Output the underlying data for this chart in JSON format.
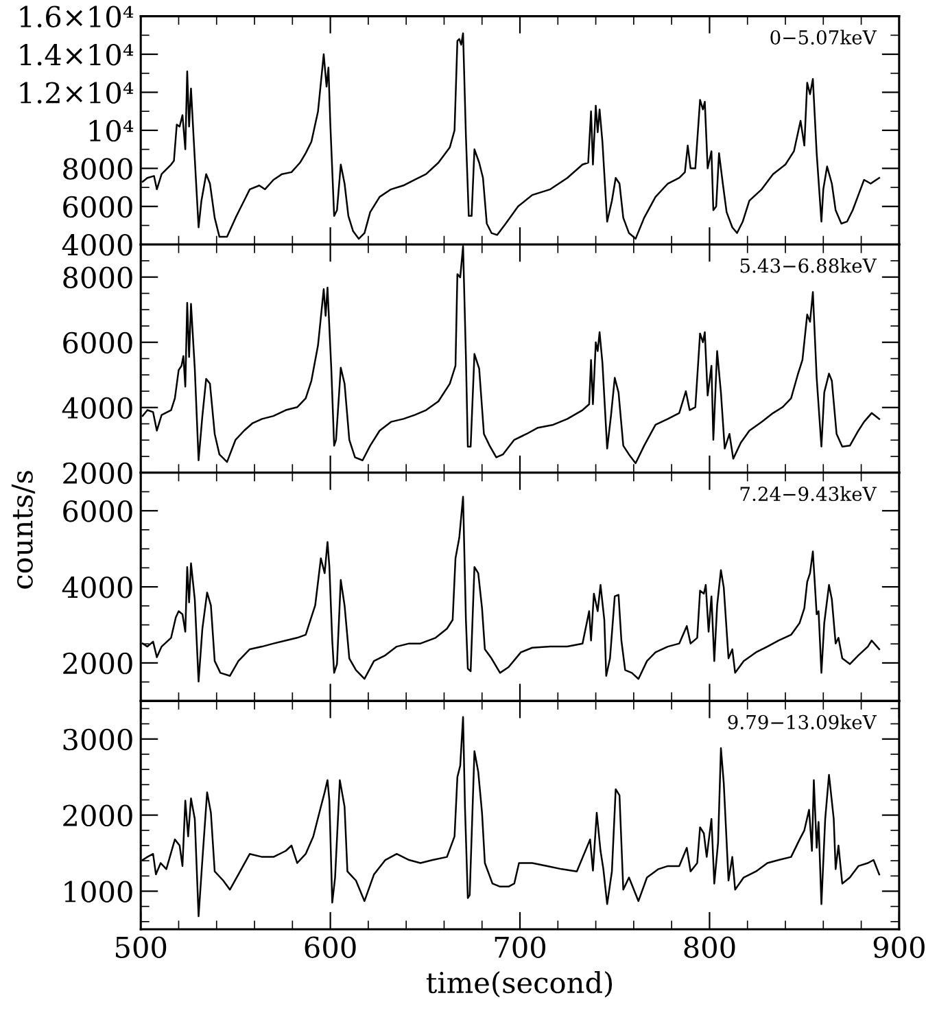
{
  "chart_data": [
    {
      "type": "line",
      "annotations": [
        "0−5.07keV"
      ],
      "color": "#000000",
      "tick_labels": "y",
      "xlim": [
        500,
        900
      ],
      "xticks": [
        500,
        {
          "value": 520,
          "label": null
        },
        {
          "value": 540,
          "label": null
        },
        {
          "value": 560,
          "label": null
        },
        {
          "value": 580,
          "label": null
        },
        600,
        {
          "value": 620,
          "label": null
        },
        {
          "value": 640,
          "label": null
        },
        {
          "value": 660,
          "label": null
        },
        {
          "value": 680,
          "label": null
        },
        700,
        {
          "value": 720,
          "label": null
        },
        {
          "value": 740,
          "label": null
        },
        {
          "value": 760,
          "label": null
        },
        {
          "value": 780,
          "label": null
        },
        800,
        {
          "value": 820,
          "label": null
        },
        {
          "value": 840,
          "label": null
        },
        {
          "value": 860,
          "label": null
        },
        {
          "value": 880,
          "label": null
        },
        900
      ],
      "ylim": [
        4000,
        16000
      ],
      "yticks": [
        4000,
        {
          "value": 5000,
          "label": null
        },
        6000,
        {
          "value": 7000,
          "label": null
        },
        8000,
        {
          "value": 9000,
          "label": null
        },
        {
          "value": 10000,
          "label": "10⁴"
        },
        {
          "value": 11000,
          "label": null
        },
        {
          "value": 12000,
          "label": "1.2×10⁴"
        },
        {
          "value": 13000,
          "label": null
        },
        {
          "value": 14000,
          "label": "1.4×10⁴"
        },
        {
          "value": 15000,
          "label": null
        },
        {
          "value": 16000,
          "label": "1.6×10⁴"
        }
      ],
      "x": [
        501,
        503.5,
        507,
        508.5,
        511,
        516,
        517.5,
        519,
        520.5,
        522,
        523.5,
        524.5,
        525.5,
        526.5,
        528,
        530.5,
        532,
        534.5,
        536.5,
        539,
        541.5,
        545.5,
        550,
        552,
        554.5,
        557.5,
        562.5,
        565.5,
        570,
        574.5,
        579.5,
        584,
        587,
        590,
        593.5,
        596.5,
        598,
        599,
        600,
        602,
        603.5,
        605.5,
        607.5,
        609.5,
        612,
        615,
        618,
        621,
        626,
        632,
        638.5,
        644.5,
        650.5,
        657,
        663,
        665.5,
        667,
        668,
        669,
        670,
        671.5,
        673,
        674.5,
        676,
        678.5,
        680.5,
        682.5,
        685,
        688,
        692.5,
        699,
        706.5,
        716,
        725,
        733,
        736,
        737.5,
        738.5,
        740,
        741,
        742,
        743.5,
        746,
        748.5,
        750.5,
        752.5,
        754.5,
        757.5,
        761,
        765.5,
        771.5,
        778,
        784,
        787,
        788.5,
        790,
        792.5,
        795,
        796.5,
        797.5,
        799,
        801,
        802,
        803.5,
        805,
        807,
        809,
        812,
        814.5,
        817.5,
        821,
        827.5,
        833.5,
        840,
        844.5,
        848,
        850,
        851.5,
        853,
        854.5,
        856.5,
        859,
        860,
        862,
        864.5,
        866.5,
        869.5,
        872.5,
        875.5,
        878.5,
        881.5,
        885,
        889.5
      ],
      "values": [
        7300,
        7500,
        7600,
        6900,
        7700,
        8200,
        8400,
        10300,
        10200,
        10800,
        9000,
        13100,
        10200,
        12200,
        9400,
        4900,
        6300,
        7700,
        7200,
        5400,
        4400,
        4400,
        5400,
        5800,
        6300,
        6900,
        7100,
        6900,
        7400,
        7700,
        7800,
        8300,
        8800,
        9400,
        11000,
        14000,
        12300,
        13300,
        10300,
        5500,
        5800,
        8200,
        7200,
        5500,
        4700,
        4300,
        4600,
        5700,
        6500,
        6900,
        7100,
        7400,
        7700,
        8300,
        9100,
        10000,
        14700,
        14800,
        14500,
        15100,
        9700,
        5500,
        5500,
        9000,
        8300,
        7500,
        5100,
        4600,
        4500,
        5100,
        6000,
        6600,
        6900,
        7500,
        8200,
        8300,
        11000,
        8200,
        11300,
        9900,
        11100,
        9400,
        5200,
        6300,
        7500,
        7200,
        5400,
        4600,
        4300,
        5400,
        6500,
        7200,
        7500,
        7800,
        9200,
        8000,
        8000,
        11600,
        11100,
        11500,
        8000,
        8900,
        5800,
        6000,
        8800,
        7200,
        5700,
        4900,
        4600,
        5200,
        6300,
        6900,
        7700,
        8200,
        8900,
        10500,
        9200,
        12500,
        11900,
        12700,
        8800,
        5200,
        6900,
        8100,
        7200,
        5800,
        5100,
        5200,
        5800,
        6600,
        7400,
        7200,
        7500
      ]
    },
    {
      "type": "line",
      "annotations": [
        "5.43−6.88keV"
      ],
      "color": "#000000",
      "tick_labels": "y",
      "xlim": [
        500,
        900
      ],
      "xticks": [
        500,
        {
          "value": 520,
          "label": null
        },
        {
          "value": 540,
          "label": null
        },
        {
          "value": 560,
          "label": null
        },
        {
          "value": 580,
          "label": null
        },
        600,
        {
          "value": 620,
          "label": null
        },
        {
          "value": 640,
          "label": null
        },
        {
          "value": 660,
          "label": null
        },
        {
          "value": 680,
          "label": null
        },
        700,
        {
          "value": 720,
          "label": null
        },
        {
          "value": 740,
          "label": null
        },
        {
          "value": 760,
          "label": null
        },
        {
          "value": 780,
          "label": null
        },
        800,
        {
          "value": 820,
          "label": null
        },
        {
          "value": 840,
          "label": null
        },
        {
          "value": 860,
          "label": null
        },
        {
          "value": 880,
          "label": null
        },
        900
      ],
      "ylim": [
        2000,
        9000
      ],
      "yticks": [
        2000,
        {
          "value": 2500,
          "label": null
        },
        {
          "value": 3000,
          "label": null
        },
        {
          "value": 3500,
          "label": null
        },
        4000,
        {
          "value": 4500,
          "label": null
        },
        {
          "value": 5000,
          "label": null
        },
        {
          "value": 5500,
          "label": null
        },
        6000,
        {
          "value": 6500,
          "label": null
        },
        {
          "value": 7000,
          "label": null
        },
        {
          "value": 7500,
          "label": null
        },
        8000,
        {
          "value": 8500,
          "label": null
        }
      ],
      "x": [
        501,
        503.5,
        506.5,
        508.5,
        511,
        516,
        518,
        520,
        521.5,
        522.5,
        523.5,
        524.5,
        525.5,
        526.5,
        528.5,
        530.5,
        532.5,
        534.5,
        536.5,
        539,
        541.5,
        545.5,
        550,
        554.5,
        559,
        564,
        570,
        576.5,
        582.5,
        587,
        590,
        593.5,
        596.5,
        597.5,
        598.5,
        600.5,
        602,
        603,
        605.5,
        607.5,
        610,
        613,
        617,
        621,
        626,
        632,
        638.5,
        644.5,
        650.5,
        657,
        663,
        666,
        667,
        668.5,
        670,
        671.5,
        672.5,
        674,
        676,
        678.5,
        681,
        684,
        687.5,
        691,
        697,
        703.5,
        709.5,
        717.5,
        725,
        733,
        736.5,
        737.5,
        738.5,
        740,
        741,
        742,
        743.5,
        746,
        748,
        750,
        752,
        754.5,
        757.5,
        761,
        765.5,
        771.5,
        778,
        784,
        787.5,
        789.5,
        792.5,
        795,
        796.5,
        797.5,
        799,
        801,
        802,
        804,
        806,
        808,
        810.5,
        812.5,
        816.5,
        821,
        827.5,
        833.5,
        838.5,
        843,
        846.5,
        849,
        851.5,
        853,
        854.5,
        856.5,
        859,
        860.5,
        863,
        864.5,
        867,
        870,
        874,
        878.5,
        881.5,
        885.5,
        889.5
      ],
      "values": [
        3740,
        3920,
        3860,
        3290,
        3770,
        3920,
        4280,
        5150,
        5280,
        5580,
        4640,
        7210,
        5550,
        7180,
        5190,
        2380,
        3740,
        4880,
        4730,
        3190,
        2560,
        2330,
        3010,
        3290,
        3520,
        3650,
        3740,
        3920,
        4010,
        4280,
        4820,
        5910,
        7630,
        6810,
        7680,
        5190,
        2830,
        3010,
        5220,
        4730,
        3010,
        2470,
        2380,
        2830,
        3290,
        3560,
        3650,
        3770,
        3920,
        4190,
        4730,
        5280,
        8090,
        7990,
        8950,
        5550,
        2800,
        2800,
        5640,
        5190,
        3190,
        2830,
        2470,
        2560,
        3010,
        3190,
        3380,
        3470,
        3650,
        3920,
        4100,
        5460,
        4100,
        6000,
        5730,
        6310,
        5370,
        2740,
        3740,
        4910,
        4460,
        2830,
        2560,
        2290,
        2830,
        3470,
        3650,
        3830,
        4500,
        3920,
        4010,
        6270,
        6000,
        6310,
        4370,
        5280,
        3010,
        5730,
        4460,
        2740,
        3190,
        2430,
        2920,
        3290,
        3560,
        3830,
        4010,
        4280,
        5000,
        5460,
        6850,
        6630,
        7540,
        4910,
        2800,
        4460,
        5040,
        4820,
        3190,
        2800,
        2830,
        3290,
        3560,
        3830,
        3650
      ]
    },
    {
      "type": "line",
      "annotations": [
        "7.24−9.43keV"
      ],
      "ylabel": "counts/s",
      "color": "#000000",
      "tick_labels": "y",
      "xlim": [
        500,
        900
      ],
      "xticks": [
        500,
        {
          "value": 520,
          "label": null
        },
        {
          "value": 540,
          "label": null
        },
        {
          "value": 560,
          "label": null
        },
        {
          "value": 580,
          "label": null
        },
        600,
        {
          "value": 620,
          "label": null
        },
        {
          "value": 640,
          "label": null
        },
        {
          "value": 660,
          "label": null
        },
        {
          "value": 680,
          "label": null
        },
        700,
        {
          "value": 720,
          "label": null
        },
        {
          "value": 740,
          "label": null
        },
        {
          "value": 760,
          "label": null
        },
        {
          "value": 780,
          "label": null
        },
        800,
        {
          "value": 820,
          "label": null
        },
        {
          "value": 840,
          "label": null
        },
        {
          "value": 860,
          "label": null
        },
        {
          "value": 880,
          "label": null
        },
        900
      ],
      "ylim": [
        1000,
        7000
      ],
      "yticks": [
        {
          "value": 1500,
          "label": null
        },
        2000,
        {
          "value": 2500,
          "label": null
        },
        {
          "value": 3000,
          "label": null
        },
        {
          "value": 3500,
          "label": null
        },
        4000,
        {
          "value": 4500,
          "label": null
        },
        {
          "value": 5000,
          "label": null
        },
        {
          "value": 5500,
          "label": null
        },
        6000,
        {
          "value": 6500,
          "label": null
        }
      ],
      "x": [
        501,
        503.5,
        506.5,
        508.5,
        511,
        516,
        518.5,
        520,
        522,
        523.5,
        524.5,
        525.5,
        526.5,
        528.5,
        530.5,
        532.5,
        535,
        537,
        539,
        542,
        547,
        551.5,
        557.5,
        564,
        570,
        576.5,
        582.5,
        587,
        589.5,
        592,
        595,
        597,
        598.5,
        599.5,
        601,
        602,
        603.5,
        605.5,
        607.5,
        610,
        613.5,
        618,
        623,
        629,
        635,
        641.5,
        647.5,
        655.5,
        661.5,
        664.5,
        666,
        668,
        670,
        671.5,
        672.5,
        674,
        676,
        678,
        680,
        681.5,
        685,
        689.5,
        694,
        700.5,
        706.5,
        716,
        725,
        733,
        736.5,
        737.5,
        739,
        741,
        742.5,
        744.5,
        745.5,
        747.5,
        750,
        752,
        753.5,
        755.5,
        759,
        762.5,
        767,
        771.5,
        778,
        784,
        788,
        790,
        793.5,
        795,
        797,
        798,
        799.5,
        801,
        802.5,
        804,
        806,
        807.5,
        810,
        812,
        813.5,
        818,
        824.5,
        830.5,
        836.5,
        843,
        847.5,
        850,
        851.5,
        853,
        854.5,
        856.5,
        857.5,
        859,
        860.5,
        863,
        864.5,
        866.5,
        868,
        870,
        874,
        878.5,
        883.5,
        885.5,
        889.5
      ],
      "values": [
        2510,
        2430,
        2560,
        2150,
        2430,
        2660,
        3200,
        3360,
        3280,
        2820,
        4520,
        3590,
        4620,
        3670,
        1510,
        2900,
        3850,
        3510,
        2050,
        1740,
        1660,
        2050,
        2360,
        2430,
        2510,
        2590,
        2660,
        2740,
        3130,
        3510,
        4750,
        4360,
        5180,
        4520,
        2590,
        1740,
        1970,
        4180,
        3510,
        2120,
        1810,
        1580,
        2050,
        2200,
        2430,
        2510,
        2510,
        2660,
        2900,
        3130,
        4750,
        5290,
        6370,
        3130,
        1850,
        1780,
        4520,
        4360,
        3440,
        2360,
        2120,
        1740,
        1890,
        2280,
        2400,
        2430,
        2430,
        2510,
        3360,
        2590,
        3820,
        3360,
        4050,
        3130,
        1660,
        2120,
        3750,
        3790,
        2590,
        1810,
        1740,
        1580,
        2050,
        2280,
        2430,
        2510,
        2970,
        2510,
        2660,
        3900,
        3820,
        4050,
        2820,
        3750,
        2050,
        3510,
        4440,
        3980,
        2120,
        2360,
        1740,
        2050,
        2280,
        2430,
        2590,
        2740,
        3050,
        3440,
        4130,
        4360,
        4930,
        3280,
        3360,
        1740,
        3050,
        4050,
        3670,
        2510,
        2660,
        2120,
        1970,
        2200,
        2430,
        2590,
        2360
      ]
    },
    {
      "type": "line",
      "annotations": [
        "9.79−13.09keV"
      ],
      "xlabel": "time(second)",
      "color": "#000000",
      "xlim": [
        500,
        900
      ],
      "xticks": [
        500,
        {
          "value": 520,
          "label": null
        },
        {
          "value": 540,
          "label": null
        },
        {
          "value": 560,
          "label": null
        },
        {
          "value": 580,
          "label": null
        },
        600,
        {
          "value": 620,
          "label": null
        },
        {
          "value": 640,
          "label": null
        },
        {
          "value": 660,
          "label": null
        },
        {
          "value": 680,
          "label": null
        },
        700,
        {
          "value": 720,
          "label": null
        },
        {
          "value": 740,
          "label": null
        },
        {
          "value": 760,
          "label": null
        },
        {
          "value": 780,
          "label": null
        },
        800,
        {
          "value": 820,
          "label": null
        },
        {
          "value": 840,
          "label": null
        },
        {
          "value": 860,
          "label": null
        },
        {
          "value": 880,
          "label": null
        },
        900
      ],
      "ylim": [
        500,
        3500
      ],
      "yticks": [
        {
          "value": 600,
          "label": null
        },
        {
          "value": 800,
          "label": null
        },
        1000,
        {
          "value": 1200,
          "label": null
        },
        {
          "value": 1400,
          "label": null
        },
        {
          "value": 1600,
          "label": null
        },
        {
          "value": 1800,
          "label": null
        },
        2000,
        {
          "value": 2200,
          "label": null
        },
        {
          "value": 2400,
          "label": null
        },
        {
          "value": 2600,
          "label": null
        },
        {
          "value": 2800,
          "label": null
        },
        3000,
        {
          "value": 3200,
          "label": null
        },
        {
          "value": 3400,
          "label": null
        }
      ],
      "x": [
        501,
        503.5,
        506.5,
        508,
        510.5,
        513.5,
        518,
        520.5,
        522,
        523.5,
        525,
        526.5,
        528.5,
        530.5,
        532.5,
        535,
        537,
        539,
        543.5,
        547,
        551.5,
        557.5,
        564,
        570,
        576.5,
        579.5,
        582.5,
        587,
        591,
        595,
        597,
        598.5,
        599.5,
        601,
        602.5,
        605,
        607.5,
        609,
        613.5,
        618,
        623,
        629,
        635,
        641.5,
        647.5,
        654,
        661.5,
        665.5,
        667,
        668.5,
        670,
        671,
        672.5,
        673.5,
        676,
        678,
        680,
        681.5,
        685.5,
        689.5,
        694,
        697,
        699.5,
        706.5,
        714.5,
        722,
        730,
        737,
        738.5,
        740.5,
        742.5,
        744,
        746,
        748.5,
        750.5,
        752.5,
        754.5,
        757.5,
        762.5,
        767,
        773,
        778,
        784,
        788,
        790,
        793.5,
        795,
        797,
        798.5,
        801,
        802.5,
        804.5,
        806,
        807.5,
        810,
        812,
        813.5,
        818,
        824.5,
        830.5,
        836.5,
        843,
        847.5,
        850,
        852.5,
        854,
        855,
        856.5,
        857.5,
        859,
        861,
        863,
        865.5,
        866.5,
        868,
        870,
        874,
        878.5,
        883.5,
        886.5,
        889.5
      ],
      "values": [
        1410,
        1450,
        1490,
        1220,
        1370,
        1290,
        1680,
        1600,
        1330,
        2190,
        1720,
        2220,
        1950,
        670,
        1410,
        2300,
        2030,
        1260,
        1140,
        1020,
        1220,
        1490,
        1450,
        1450,
        1530,
        1600,
        1370,
        1490,
        1720,
        2110,
        2300,
        2460,
        2190,
        850,
        1180,
        2460,
        2110,
        1260,
        1140,
        870,
        1220,
        1410,
        1490,
        1410,
        1370,
        1410,
        1450,
        1720,
        2500,
        2650,
        3290,
        2110,
        910,
        950,
        2840,
        2570,
        2030,
        1370,
        1100,
        1060,
        1060,
        1100,
        1370,
        1370,
        1330,
        1290,
        1260,
        1680,
        1270,
        2030,
        1530,
        1290,
        830,
        1260,
        2340,
        2260,
        1020,
        1180,
        870,
        1180,
        1290,
        1330,
        1330,
        1570,
        1260,
        1370,
        1840,
        1760,
        1450,
        1950,
        1100,
        1640,
        2880,
        2420,
        1140,
        1450,
        1020,
        1180,
        1260,
        1370,
        1410,
        1450,
        1680,
        1800,
        2070,
        1530,
        2460,
        1570,
        1910,
        830,
        1950,
        2530,
        1950,
        1290,
        1600,
        1100,
        1180,
        1330,
        1370,
        1410,
        1220
      ]
    }
  ]
}
